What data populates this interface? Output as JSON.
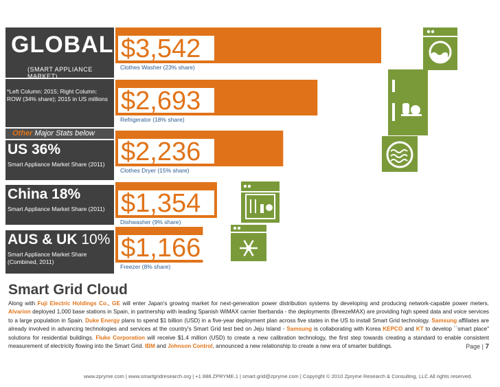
{
  "left": {
    "global_title": "GLOBAL",
    "global_sub": "(SMART APPLIANCE MARKET)",
    "note": "*Left Column: 2015; Right Column: ROW (34% share); 2015 in US millions",
    "other_em": "Other",
    "other_rest": "Major Stats below",
    "stats": [
      {
        "bold": "US 36%",
        "light": "",
        "sub": "Smart Appliance Market Share (2011)"
      },
      {
        "bold": "China 18%",
        "light": "",
        "sub": "Smart Appliance Market Share (2011)"
      },
      {
        "bold": "AUS & UK",
        "light": " 10%",
        "sub": "Smart Appliance Market Share (Combined, 2011)"
      }
    ]
  },
  "chart_data": {
    "type": "bar",
    "categories": [
      "Clothes Washer (23% share)",
      "Refrigerator (18% share)",
      "Clothes Dryer (15% share)",
      "Dishwasher (9% share)",
      "Freezer (8% share)"
    ],
    "values": [
      3542,
      2693,
      2236,
      1354,
      1166
    ],
    "value_labels": [
      "$3,542",
      "$2,693",
      "$2,236",
      "$1,354",
      "$1,166"
    ],
    "icons": [
      "washer-icon",
      "refrigerator-icon",
      "dryer-icon",
      "dishwasher-icon",
      "freezer-icon"
    ],
    "bar_color": "#e07319",
    "icon_color": "#7a9a3a"
  },
  "article": {
    "title": "Smart Grid Cloud",
    "segments": [
      {
        "t": "Along with ",
        "c": false
      },
      {
        "t": "Fuji Electric Holdings Co.",
        "c": true
      },
      {
        "t": ", ",
        "c": false
      },
      {
        "t": "GE",
        "c": true
      },
      {
        "t": " will enter Japan's growing market for next-generation power distribution systems by developing and producing network-capable power meters. ",
        "c": false
      },
      {
        "t": "Alvarion",
        "c": true
      },
      {
        "t": " deployed 1,000 base stations in Spain, in partnership with leading Spanish WiMAX carrier Iberbanda - the deployments (BreezeMAX) are providing high speed data and voice services to a large population in Spain. ",
        "c": false
      },
      {
        "t": "Duke Energy",
        "c": true
      },
      {
        "t": " plans to spend $1 billion (USD) in a five-year deployment plan across five states in the US to install Smart Grid technology. ",
        "c": false
      },
      {
        "t": "Samsung",
        "c": true
      },
      {
        "t": " affiliates are already involved in advancing technologies and services at the country's Smart Grid test bed on Jeju Island - ",
        "c": false
      },
      {
        "t": "Samsung",
        "c": true
      },
      {
        "t": " is collaborating with Korea ",
        "c": false
      },
      {
        "t": "KEPCO",
        "c": true
      },
      {
        "t": " and ",
        "c": false
      },
      {
        "t": "KT",
        "c": true
      },
      {
        "t": " to develop ``smart place\" solutions for residential buildings. ",
        "c": false
      },
      {
        "t": "Fluke Corporation",
        "c": true
      },
      {
        "t": " will receive $1.4 million (USD) to create a new calibration technology, the first step towards creating a standard to enable consistent measurement of electricity flowing into the Smart Grid. ",
        "c": false
      },
      {
        "t": "IBM",
        "c": true
      },
      {
        "t": " and ",
        "c": false
      },
      {
        "t": "Johnson Control",
        "c": true
      },
      {
        "t": ", announced a new relationship to create a new era of smarter buildings.",
        "c": false
      }
    ]
  },
  "page": {
    "label": "Page | ",
    "number": "7"
  },
  "footer": "www.zpryme.com | www.smartgridresearch.org | +1 888.ZPRYME.1 | smart.grid@zpryme.com | Copyright © 2010 Zpryme Research & Consulting, LLC All rights reserved."
}
